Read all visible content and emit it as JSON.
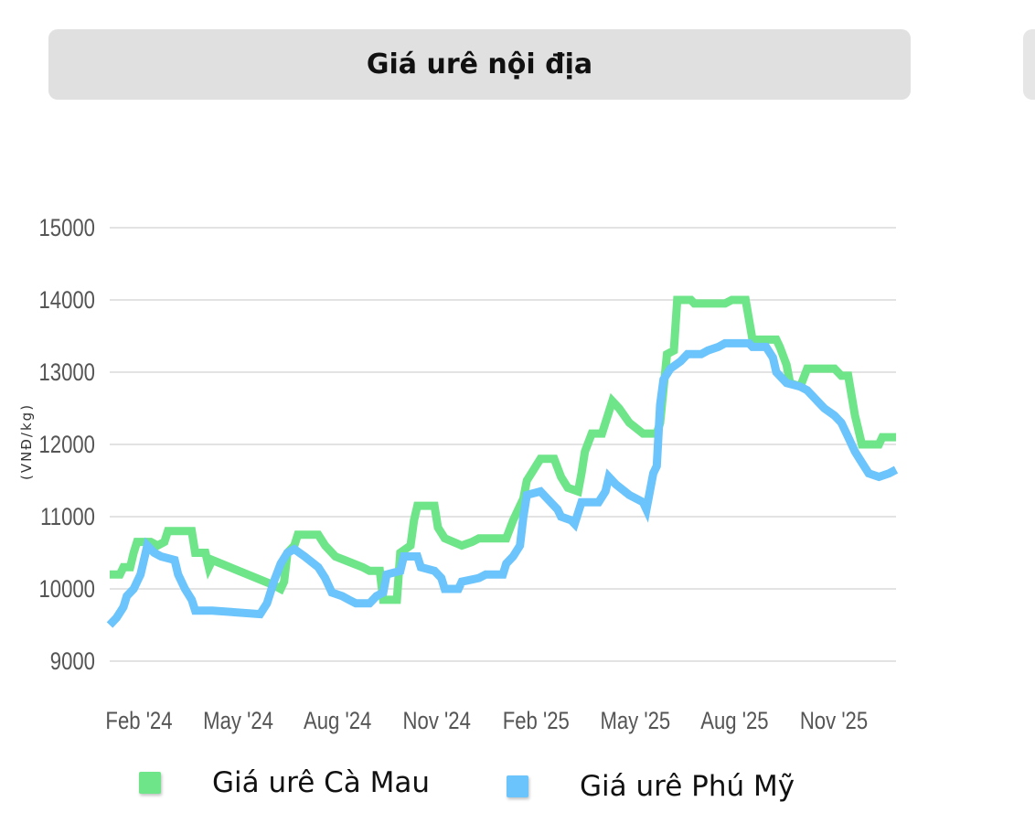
{
  "header": {
    "title": "Giá urê nội địa"
  },
  "chart_data": {
    "type": "line",
    "ylabel": "(VNĐ/kg)",
    "ylim": [
      8800,
      15200
    ],
    "yticks": [
      9000,
      10000,
      11000,
      12000,
      13000,
      14000,
      15000
    ],
    "xlim": [
      0,
      24
    ],
    "xticks": [
      {
        "x": 1,
        "label": "Feb '24"
      },
      {
        "x": 4,
        "label": "May '24"
      },
      {
        "x": 7,
        "label": "Aug '24"
      },
      {
        "x": 10,
        "label": "Nov '24"
      },
      {
        "x": 13,
        "label": "Feb '25"
      },
      {
        "x": 16,
        "label": "May '25"
      },
      {
        "x": 19,
        "label": "Aug '25"
      },
      {
        "x": 22,
        "label": "Nov '25"
      }
    ],
    "grid": true,
    "legend": "bottom",
    "series": [
      {
        "name": "Giá urê Cà Mau",
        "color": "#6ee589",
        "points": [
          [
            0.0,
            10200
          ],
          [
            0.3,
            10200
          ],
          [
            0.4,
            10300
          ],
          [
            0.6,
            10300
          ],
          [
            0.7,
            10500
          ],
          [
            0.8,
            10650
          ],
          [
            1.2,
            10650
          ],
          [
            1.4,
            10600
          ],
          [
            1.6,
            10650
          ],
          [
            1.7,
            10800
          ],
          [
            2.4,
            10800
          ],
          [
            2.5,
            10500
          ],
          [
            2.8,
            10500
          ],
          [
            2.9,
            10300
          ],
          [
            3.0,
            10400
          ],
          [
            4.8,
            10050
          ],
          [
            5.0,
            10000
          ],
          [
            5.1,
            10100
          ],
          [
            5.2,
            10500
          ],
          [
            5.4,
            10600
          ],
          [
            5.5,
            10750
          ],
          [
            6.1,
            10750
          ],
          [
            6.3,
            10600
          ],
          [
            6.6,
            10450
          ],
          [
            7.4,
            10300
          ],
          [
            7.6,
            10250
          ],
          [
            7.9,
            10250
          ],
          [
            8.0,
            9850
          ],
          [
            8.4,
            9850
          ],
          [
            8.5,
            10500
          ],
          [
            8.8,
            10600
          ],
          [
            8.9,
            10950
          ],
          [
            9.0,
            11150
          ],
          [
            9.5,
            11150
          ],
          [
            9.6,
            10850
          ],
          [
            9.8,
            10700
          ],
          [
            10.3,
            10600
          ],
          [
            10.6,
            10650
          ],
          [
            10.8,
            10700
          ],
          [
            11.6,
            10700
          ],
          [
            11.8,
            10950
          ],
          [
            12.1,
            11250
          ],
          [
            12.2,
            11500
          ],
          [
            12.4,
            11650
          ],
          [
            12.6,
            11800
          ],
          [
            13.0,
            11800
          ],
          [
            13.2,
            11550
          ],
          [
            13.4,
            11400
          ],
          [
            13.7,
            11350
          ],
          [
            13.8,
            11600
          ],
          [
            13.9,
            11900
          ],
          [
            14.1,
            12150
          ],
          [
            14.4,
            12150
          ],
          [
            14.5,
            12300
          ],
          [
            14.7,
            12600
          ],
          [
            14.9,
            12500
          ],
          [
            15.2,
            12300
          ],
          [
            15.6,
            12150
          ],
          [
            16.0,
            12150
          ],
          [
            16.1,
            12300
          ],
          [
            16.3,
            13250
          ],
          [
            16.5,
            13300
          ],
          [
            16.6,
            14000
          ],
          [
            17.0,
            14000
          ],
          [
            17.1,
            13950
          ],
          [
            18.0,
            13950
          ],
          [
            18.2,
            14000
          ],
          [
            18.6,
            14000
          ],
          [
            18.8,
            13450
          ],
          [
            19.5,
            13450
          ],
          [
            19.6,
            13350
          ],
          [
            19.8,
            13100
          ],
          [
            19.9,
            12850
          ],
          [
            20.2,
            12800
          ],
          [
            20.4,
            13050
          ],
          [
            21.2,
            13050
          ],
          [
            21.4,
            12950
          ],
          [
            21.6,
            12950
          ],
          [
            21.8,
            12400
          ],
          [
            21.9,
            12200
          ],
          [
            22.0,
            12000
          ],
          [
            22.5,
            12000
          ],
          [
            22.6,
            12100
          ],
          [
            23.0,
            12100
          ]
        ]
      },
      {
        "name": "Giá urê Phú Mỹ",
        "color": "#6bc4fb",
        "points": [
          [
            0.0,
            9500
          ],
          [
            0.2,
            9600
          ],
          [
            0.4,
            9750
          ],
          [
            0.5,
            9900
          ],
          [
            0.7,
            10000
          ],
          [
            0.9,
            10200
          ],
          [
            1.0,
            10400
          ],
          [
            1.1,
            10600
          ],
          [
            1.3,
            10500
          ],
          [
            1.5,
            10450
          ],
          [
            1.9,
            10400
          ],
          [
            2.0,
            10200
          ],
          [
            2.2,
            10000
          ],
          [
            2.4,
            9850
          ],
          [
            2.5,
            9700
          ],
          [
            3.0,
            9700
          ],
          [
            4.4,
            9650
          ],
          [
            4.6,
            9800
          ],
          [
            4.8,
            10100
          ],
          [
            5.0,
            10350
          ],
          [
            5.2,
            10500
          ],
          [
            5.4,
            10550
          ],
          [
            5.7,
            10450
          ],
          [
            6.1,
            10300
          ],
          [
            6.3,
            10150
          ],
          [
            6.5,
            9950
          ],
          [
            6.8,
            9900
          ],
          [
            7.0,
            9850
          ],
          [
            7.2,
            9800
          ],
          [
            7.6,
            9800
          ],
          [
            7.8,
            9900
          ],
          [
            8.0,
            9950
          ],
          [
            8.1,
            10200
          ],
          [
            8.5,
            10250
          ],
          [
            8.6,
            10450
          ],
          [
            9.0,
            10450
          ],
          [
            9.1,
            10300
          ],
          [
            9.5,
            10250
          ],
          [
            9.7,
            10150
          ],
          [
            9.8,
            10000
          ],
          [
            10.2,
            10000
          ],
          [
            10.3,
            10100
          ],
          [
            10.8,
            10150
          ],
          [
            11.0,
            10200
          ],
          [
            11.5,
            10200
          ],
          [
            11.6,
            10350
          ],
          [
            11.8,
            10450
          ],
          [
            12.0,
            10600
          ],
          [
            12.1,
            11000
          ],
          [
            12.2,
            11300
          ],
          [
            12.6,
            11350
          ],
          [
            12.8,
            11250
          ],
          [
            13.1,
            11100
          ],
          [
            13.2,
            11000
          ],
          [
            13.5,
            10950
          ],
          [
            13.6,
            10900
          ],
          [
            13.8,
            11200
          ],
          [
            14.3,
            11200
          ],
          [
            14.5,
            11350
          ],
          [
            14.6,
            11550
          ],
          [
            14.8,
            11450
          ],
          [
            15.2,
            11300
          ],
          [
            15.6,
            11200
          ],
          [
            15.7,
            11100
          ],
          [
            15.9,
            11600
          ],
          [
            16.0,
            11700
          ],
          [
            16.1,
            12550
          ],
          [
            16.2,
            12900
          ],
          [
            16.4,
            13050
          ],
          [
            16.7,
            13150
          ],
          [
            16.9,
            13250
          ],
          [
            17.3,
            13250
          ],
          [
            17.5,
            13300
          ],
          [
            17.8,
            13350
          ],
          [
            18.0,
            13400
          ],
          [
            18.7,
            13400
          ],
          [
            18.8,
            13350
          ],
          [
            19.2,
            13350
          ],
          [
            19.4,
            13200
          ],
          [
            19.5,
            13000
          ],
          [
            19.8,
            12850
          ],
          [
            20.2,
            12800
          ],
          [
            20.4,
            12750
          ],
          [
            20.7,
            12600
          ],
          [
            20.9,
            12500
          ],
          [
            21.2,
            12400
          ],
          [
            21.4,
            12300
          ],
          [
            21.6,
            12100
          ],
          [
            21.8,
            11900
          ],
          [
            22.0,
            11750
          ],
          [
            22.2,
            11600
          ],
          [
            22.5,
            11550
          ],
          [
            22.8,
            11600
          ],
          [
            23.0,
            11650
          ]
        ]
      }
    ]
  },
  "legend": {
    "items": [
      {
        "label": "Giá urê Cà Mau",
        "color": "#6ee589"
      },
      {
        "label": "Giá urê Phú Mỹ",
        "color": "#6bc4fb"
      }
    ]
  }
}
